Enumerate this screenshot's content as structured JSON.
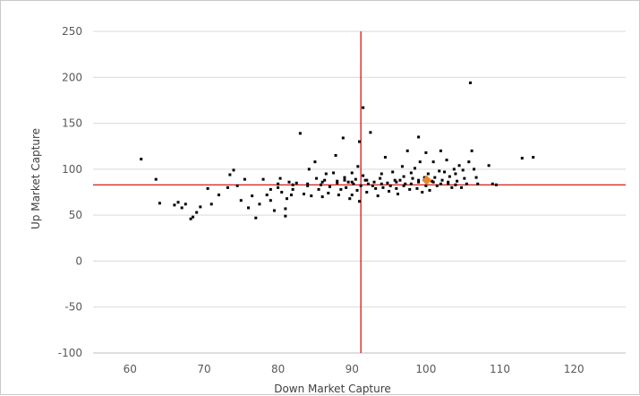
{
  "chart_data": {
    "type": "scatter",
    "title": "",
    "xlabel": "Down Market Capture",
    "ylabel": "Up Market Capture",
    "xlim": [
      55,
      127
    ],
    "ylim": [
      -100,
      250
    ],
    "xticks": [
      60,
      70,
      80,
      90,
      100,
      110,
      120
    ],
    "yticks": [
      -100,
      -50,
      0,
      50,
      100,
      150,
      200,
      250
    ],
    "grid": "horizontal",
    "reference_lines": {
      "vertical_x": 91.2,
      "horizontal_y": 83,
      "color": "#d40000"
    },
    "highlight": {
      "x": 100.1,
      "y": 88,
      "color": "#e8892c"
    },
    "point_color": "#000000",
    "points": [
      [
        61.5,
        111
      ],
      [
        63.5,
        89
      ],
      [
        64,
        63
      ],
      [
        66,
        61
      ],
      [
        66.5,
        64
      ],
      [
        67,
        58
      ],
      [
        67.5,
        62
      ],
      [
        68.2,
        46
      ],
      [
        68.5,
        48
      ],
      [
        69,
        53
      ],
      [
        69.5,
        59
      ],
      [
        70.5,
        79
      ],
      [
        71,
        62
      ],
      [
        72,
        72
      ],
      [
        73.2,
        80
      ],
      [
        73.5,
        94
      ],
      [
        74,
        99
      ],
      [
        74.5,
        82
      ],
      [
        75,
        66
      ],
      [
        75.5,
        89
      ],
      [
        76,
        58
      ],
      [
        76.5,
        71
      ],
      [
        77,
        47
      ],
      [
        77.5,
        62
      ],
      [
        78,
        89
      ],
      [
        78.5,
        72
      ],
      [
        79,
        66
      ],
      [
        79.5,
        55
      ],
      [
        80,
        84
      ],
      [
        80.3,
        90
      ],
      [
        80.5,
        75
      ],
      [
        81,
        49
      ],
      [
        81,
        57
      ],
      [
        81.2,
        68
      ],
      [
        81.5,
        86
      ],
      [
        81.8,
        72
      ],
      [
        82,
        78
      ],
      [
        82.5,
        85
      ],
      [
        83,
        139
      ],
      [
        83.5,
        73
      ],
      [
        84,
        82
      ],
      [
        84.2,
        100
      ],
      [
        84.5,
        71
      ],
      [
        85,
        108
      ],
      [
        85.2,
        90
      ],
      [
        85.5,
        78
      ],
      [
        85.8,
        83
      ],
      [
        86,
        70
      ],
      [
        86.3,
        88
      ],
      [
        86.5,
        95
      ],
      [
        86.8,
        74
      ],
      [
        87,
        81
      ],
      [
        87.5,
        96
      ],
      [
        87.8,
        115
      ],
      [
        88,
        85
      ],
      [
        88.2,
        72
      ],
      [
        88.5,
        78
      ],
      [
        88.8,
        134
      ],
      [
        89,
        91
      ],
      [
        89.2,
        80
      ],
      [
        89.5,
        86
      ],
      [
        89.7,
        68
      ],
      [
        90,
        72
      ],
      [
        90,
        96
      ],
      [
        90.2,
        84
      ],
      [
        90.5,
        89
      ],
      [
        90.7,
        77
      ],
      [
        90.8,
        103
      ],
      [
        91,
        65
      ],
      [
        91,
        130
      ],
      [
        91.2,
        82
      ],
      [
        91.5,
        167
      ],
      [
        91.5,
        93
      ],
      [
        91.8,
        88
      ],
      [
        92,
        75
      ],
      [
        92.2,
        84
      ],
      [
        92.5,
        140
      ],
      [
        92.8,
        82
      ],
      [
        93,
        86
      ],
      [
        93.2,
        79
      ],
      [
        93.5,
        71
      ],
      [
        93.8,
        90
      ],
      [
        94,
        95
      ],
      [
        94.2,
        80
      ],
      [
        94.5,
        113
      ],
      [
        94.8,
        85
      ],
      [
        95,
        76
      ],
      [
        95.2,
        82
      ],
      [
        95.5,
        97
      ],
      [
        95.8,
        88
      ],
      [
        96,
        79
      ],
      [
        96.2,
        73
      ],
      [
        96.5,
        88
      ],
      [
        96.8,
        103
      ],
      [
        97,
        92
      ],
      [
        97.2,
        84
      ],
      [
        97.5,
        120
      ],
      [
        97.8,
        78
      ],
      [
        98,
        96
      ],
      [
        98.2,
        90
      ],
      [
        98.5,
        101
      ],
      [
        98.8,
        79
      ],
      [
        99,
        86
      ],
      [
        99,
        135
      ],
      [
        99.2,
        108
      ],
      [
        99.5,
        75
      ],
      [
        99.8,
        91
      ],
      [
        100,
        82
      ],
      [
        100,
        118
      ],
      [
        100.3,
        95
      ],
      [
        100.5,
        77
      ],
      [
        100.8,
        87
      ],
      [
        101,
        108
      ],
      [
        101.2,
        91
      ],
      [
        101.5,
        82
      ],
      [
        101.8,
        98
      ],
      [
        102,
        120
      ],
      [
        102.2,
        88
      ],
      [
        102.5,
        97
      ],
      [
        102.8,
        110
      ],
      [
        103,
        84
      ],
      [
        103.2,
        92
      ],
      [
        103.5,
        80
      ],
      [
        103.8,
        100
      ],
      [
        104,
        95
      ],
      [
        104.2,
        87
      ],
      [
        104.5,
        104
      ],
      [
        104.8,
        80
      ],
      [
        105,
        99
      ],
      [
        105.2,
        90
      ],
      [
        105.5,
        84
      ],
      [
        105.8,
        108
      ],
      [
        106,
        194
      ],
      [
        106.2,
        120
      ],
      [
        106.5,
        100
      ],
      [
        106.8,
        91
      ],
      [
        107,
        84
      ],
      [
        108.5,
        104
      ],
      [
        109,
        84
      ],
      [
        109.5,
        83
      ],
      [
        113,
        112
      ],
      [
        114.5,
        113
      ],
      [
        79,
        78
      ],
      [
        80,
        80
      ],
      [
        82,
        83
      ],
      [
        84,
        84
      ],
      [
        86,
        86
      ],
      [
        88,
        87
      ],
      [
        89,
        88
      ],
      [
        90,
        86
      ],
      [
        92,
        88
      ],
      [
        94,
        84
      ],
      [
        96,
        86
      ],
      [
        97,
        82
      ],
      [
        98,
        84
      ],
      [
        99,
        88
      ],
      [
        101,
        86
      ],
      [
        102,
        84
      ],
      [
        103,
        86
      ],
      [
        104,
        83
      ]
    ]
  }
}
